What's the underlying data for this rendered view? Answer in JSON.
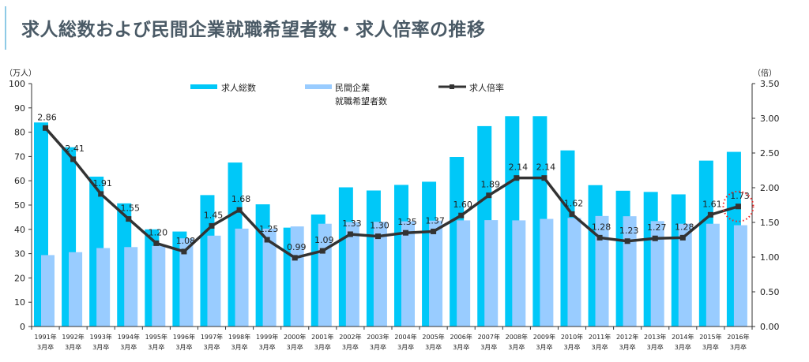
{
  "header": {
    "title": "求人総数および民間企業就職希望者数・求人倍率の推移"
  },
  "chart_data": {
    "type": "bar+line",
    "categories": [
      [
        "1991年",
        "3月卒"
      ],
      [
        "1992年",
        "3月卒"
      ],
      [
        "1993年",
        "3月卒"
      ],
      [
        "1994年",
        "3月卒"
      ],
      [
        "1995年",
        "3月卒"
      ],
      [
        "1996年",
        "3月卒"
      ],
      [
        "1997年",
        "3月卒"
      ],
      [
        "1998年",
        "3月卒"
      ],
      [
        "1999年",
        "3月卒"
      ],
      [
        "2000年",
        "3月卒"
      ],
      [
        "2001年",
        "3月卒"
      ],
      [
        "2002年",
        "3月卒"
      ],
      [
        "2003年",
        "3月卒"
      ],
      [
        "2004年",
        "3月卒"
      ],
      [
        "2005年",
        "3月卒"
      ],
      [
        "2006年",
        "3月卒"
      ],
      [
        "2007年",
        "3月卒"
      ],
      [
        "2008年",
        "3月卒"
      ],
      [
        "2009年",
        "3月卒"
      ],
      [
        "2010年",
        "3月卒"
      ],
      [
        "2011年",
        "3月卒"
      ],
      [
        "2012年",
        "3月卒"
      ],
      [
        "2013年",
        "3月卒"
      ],
      [
        "2014年",
        "3月卒"
      ],
      [
        "2015年",
        "3月卒"
      ],
      [
        "2016年",
        "3月卒"
      ]
    ],
    "series": [
      {
        "name": "求人総数",
        "type": "bar",
        "axis": "left",
        "color": "#00c8f8",
        "values": [
          84.0,
          73.8,
          61.7,
          50.7,
          40.0,
          39.1,
          54.1,
          67.5,
          50.3,
          40.7,
          46.1,
          57.3,
          56.0,
          58.3,
          59.6,
          69.8,
          82.5,
          86.6,
          86.6,
          72.5,
          58.2,
          55.9,
          55.4,
          54.4,
          68.3,
          71.9
        ]
      },
      {
        "name": [
          "民間企業",
          "就職希望者数"
        ],
        "type": "bar",
        "axis": "left",
        "color": "#99ccff",
        "values": [
          29.4,
          30.6,
          32.3,
          32.7,
          33.2,
          36.3,
          37.4,
          40.3,
          40.3,
          41.2,
          42.3,
          43.0,
          43.1,
          43.3,
          43.6,
          43.7,
          43.8,
          43.7,
          44.3,
          44.7,
          45.5,
          45.4,
          43.4,
          42.3,
          42.3,
          41.7
        ]
      },
      {
        "name": "求人倍率",
        "type": "line",
        "axis": "right",
        "color": "#333333",
        "values": [
          2.86,
          2.41,
          1.91,
          1.55,
          1.2,
          1.08,
          1.45,
          1.68,
          1.25,
          0.99,
          1.09,
          1.33,
          1.3,
          1.35,
          1.37,
          1.6,
          1.89,
          2.14,
          2.14,
          1.62,
          1.28,
          1.23,
          1.27,
          1.28,
          1.61,
          1.73
        ],
        "labels": [
          "2.86",
          "2.41",
          "1.91",
          "1.55",
          "1.20",
          "1.08",
          "1.45",
          "1.68",
          "1.25",
          "0.99",
          "1.09",
          "1.33",
          "1.30",
          "1.35",
          "1.37",
          "1.60",
          "1.89",
          "2.14",
          "2.14",
          "1.62",
          "1.28",
          "1.23",
          "1.27",
          "1.28",
          "1.61",
          "1.73"
        ]
      }
    ],
    "y_left": {
      "unit": "（万人）",
      "range": [
        0,
        100
      ],
      "ticks": [
        "0",
        "10",
        "20",
        "30",
        "40",
        "50",
        "60",
        "70",
        "80",
        "90",
        "100"
      ]
    },
    "y_right": {
      "unit": "（倍）",
      "range": [
        0,
        3.5
      ],
      "ticks": [
        "0.00",
        "0.50",
        "1.00",
        "1.50",
        "2.00",
        "2.50",
        "3.00",
        "3.50"
      ]
    },
    "legend": "top-center",
    "grid": false,
    "highlight": {
      "category": "2016年",
      "style": "red dotted circle",
      "color": "#ee2222"
    }
  }
}
